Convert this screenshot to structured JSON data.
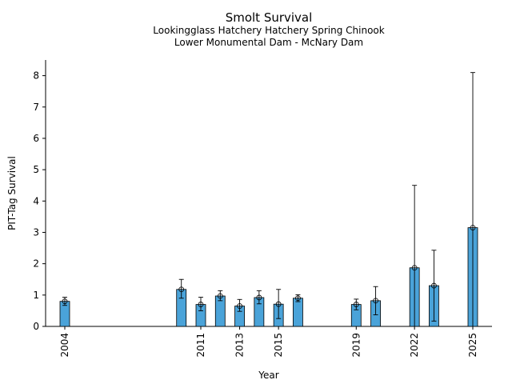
{
  "chart_data": {
    "type": "bar",
    "title": "Smolt Survival",
    "subtitle_lines": [
      "Lookingglass Hatchery Hatchery Spring Chinook",
      "Lower Monumental Dam - McNary Dam"
    ],
    "xlabel": "Year",
    "ylabel": "PIT-Tag Survival",
    "xlim": [
      2004,
      2025
    ],
    "ylim": [
      0,
      8.5
    ],
    "yticks": [
      0,
      1,
      2,
      3,
      4,
      5,
      6,
      7,
      8
    ],
    "xticks": [
      2004,
      2011,
      2013,
      2015,
      2019,
      2022,
      2025
    ],
    "bar_color": "#4aa3d9",
    "series": [
      {
        "name": "PIT-Tag Survival",
        "points": [
          {
            "year": 2004,
            "value": 0.8,
            "lower": 0.67,
            "upper": 0.93
          },
          {
            "year": 2010,
            "value": 1.18,
            "lower": 0.9,
            "upper": 1.5
          },
          {
            "year": 2011,
            "value": 0.7,
            "lower": 0.5,
            "upper": 0.93
          },
          {
            "year": 2012,
            "value": 0.97,
            "lower": 0.82,
            "upper": 1.14
          },
          {
            "year": 2013,
            "value": 0.65,
            "lower": 0.48,
            "upper": 0.86
          },
          {
            "year": 2014,
            "value": 0.92,
            "lower": 0.72,
            "upper": 1.14
          },
          {
            "year": 2015,
            "value": 0.71,
            "lower": 0.25,
            "upper": 1.18
          },
          {
            "year": 2016,
            "value": 0.9,
            "lower": 0.79,
            "upper": 1.01
          },
          {
            "year": 2019,
            "value": 0.7,
            "lower": 0.53,
            "upper": 0.87
          },
          {
            "year": 2020,
            "value": 0.82,
            "lower": 0.37,
            "upper": 1.27
          },
          {
            "year": 2022,
            "value": 1.87,
            "lower": 0.0,
            "upper": 4.5
          },
          {
            "year": 2023,
            "value": 1.3,
            "lower": 0.17,
            "upper": 2.43
          },
          {
            "year": 2025,
            "value": 3.15,
            "lower": 0.0,
            "upper": 8.1
          }
        ]
      }
    ]
  }
}
